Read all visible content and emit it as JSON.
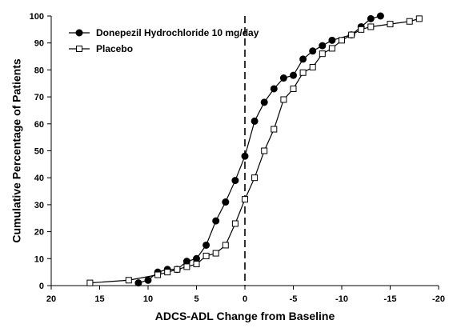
{
  "chart_data": {
    "type": "line",
    "title": "",
    "xlabel": "ADCS-ADL Change from Baseline",
    "ylabel": "Cumulative Percentage of Patients",
    "xlim": [
      20,
      -20
    ],
    "ylim": [
      0,
      100
    ],
    "x_reversed": true,
    "x_ticks": [
      20,
      15,
      10,
      5,
      0,
      -5,
      -10,
      -15,
      -20
    ],
    "x_tick_labels": [
      "20",
      "15",
      "10",
      "5",
      "0",
      "-5",
      "-10",
      "-15",
      "-20"
    ],
    "y_ticks": [
      0,
      10,
      20,
      30,
      40,
      50,
      60,
      70,
      80,
      90,
      100
    ],
    "y_tick_labels": [
      "0",
      "10",
      "20",
      "30",
      "40",
      "50",
      "60",
      "70",
      "80",
      "90",
      "100"
    ],
    "grid": false,
    "legend_position": "top-left",
    "reference_line": {
      "x": 0,
      "style": "dashed"
    },
    "series": [
      {
        "name": "Donepezil Hydrochloride   10 mg/day",
        "marker": "filled-circle",
        "color": "#000000",
        "points": [
          [
            11,
            1
          ],
          [
            10,
            2
          ],
          [
            9,
            5
          ],
          [
            8,
            6
          ],
          [
            7,
            6
          ],
          [
            6,
            9
          ],
          [
            5,
            10
          ],
          [
            4,
            15
          ],
          [
            3,
            24
          ],
          [
            2,
            31
          ],
          [
            1,
            39
          ],
          [
            0,
            48
          ],
          [
            -1,
            61
          ],
          [
            -2,
            68
          ],
          [
            -3,
            73
          ],
          [
            -4,
            77
          ],
          [
            -5,
            78
          ],
          [
            -6,
            84
          ],
          [
            -7,
            87
          ],
          [
            -8,
            89
          ],
          [
            -9,
            91
          ],
          [
            -11,
            93
          ],
          [
            -12,
            96
          ],
          [
            -13,
            99
          ],
          [
            -14,
            100
          ]
        ]
      },
      {
        "name": "Placebo",
        "marker": "open-square",
        "color": "#000000",
        "points": [
          [
            16,
            1
          ],
          [
            12,
            2
          ],
          [
            9,
            4
          ],
          [
            8,
            5
          ],
          [
            7,
            6
          ],
          [
            6,
            7
          ],
          [
            5,
            8
          ],
          [
            4,
            11
          ],
          [
            3,
            12
          ],
          [
            2,
            15
          ],
          [
            1,
            23
          ],
          [
            0,
            32
          ],
          [
            -1,
            40
          ],
          [
            -2,
            50
          ],
          [
            -3,
            58
          ],
          [
            -4,
            69
          ],
          [
            -5,
            73
          ],
          [
            -6,
            79
          ],
          [
            -7,
            81
          ],
          [
            -8,
            86
          ],
          [
            -9,
            88
          ],
          [
            -10,
            91
          ],
          [
            -11,
            93
          ],
          [
            -12,
            95
          ],
          [
            -13,
            96
          ],
          [
            -15,
            97
          ],
          [
            -17,
            98
          ],
          [
            -18,
            99
          ]
        ]
      }
    ]
  }
}
